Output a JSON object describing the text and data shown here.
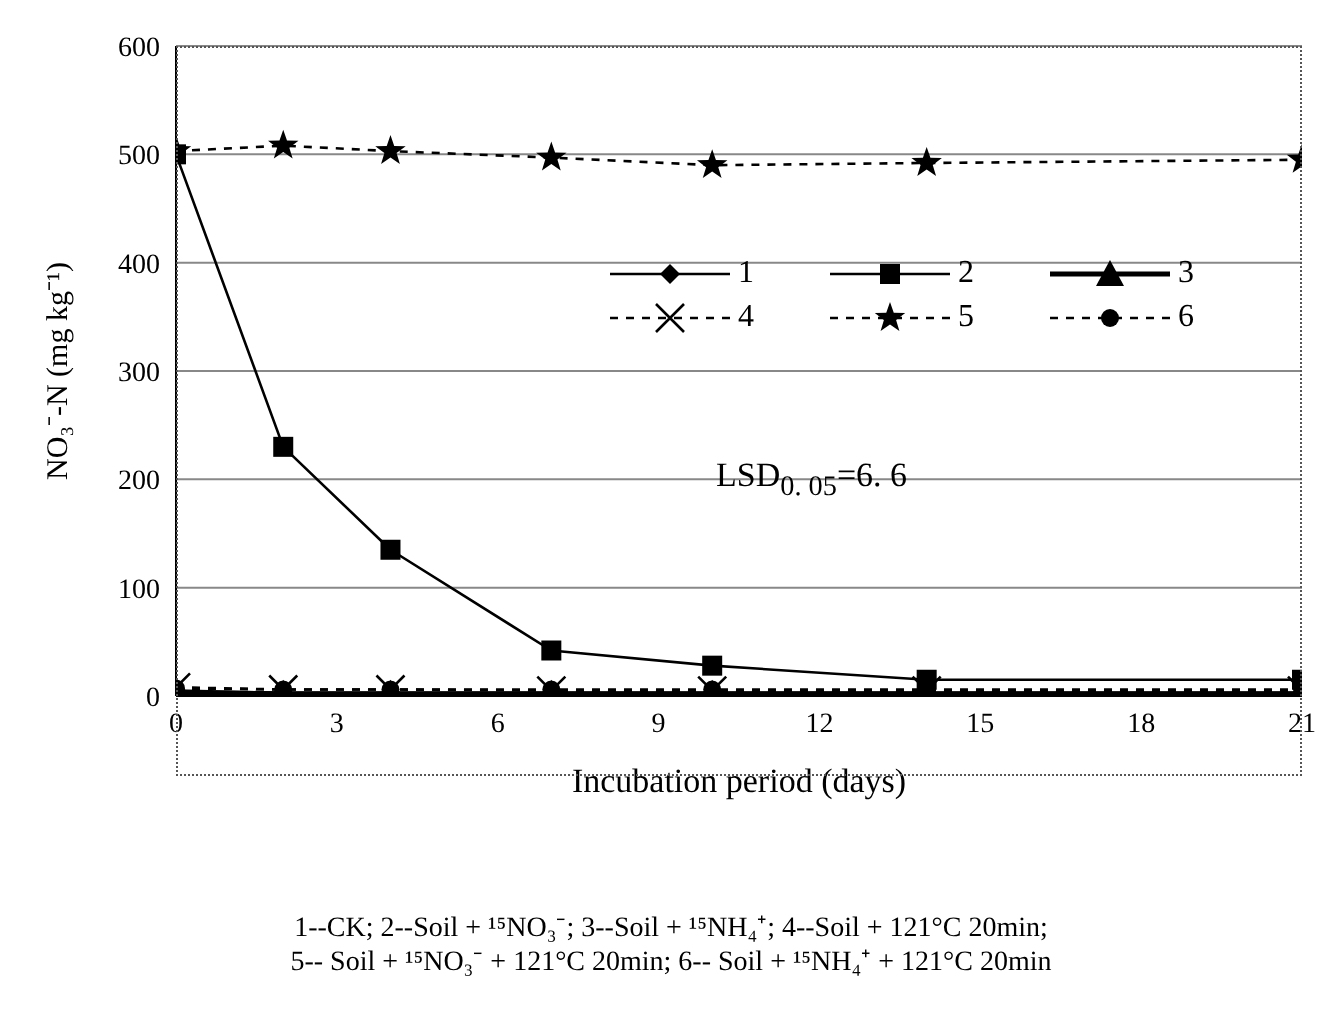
{
  "chart_data": {
    "type": "line",
    "xlabel": "Incubation period (days)",
    "ylabel": "NO₃⁻-N (mg kg⁻¹)",
    "x": [
      0,
      2,
      4,
      7,
      10,
      14,
      21
    ],
    "xlim": [
      0,
      21
    ],
    "xticks": [
      0,
      3,
      6,
      9,
      12,
      15,
      18,
      21
    ],
    "ylim": [
      0,
      600
    ],
    "yticks": [
      0,
      100,
      200,
      300,
      400,
      500,
      600
    ],
    "grid": "y",
    "legend": "top right",
    "series": [
      {
        "name": "1",
        "color": "#000000",
        "marker": "diamond",
        "line_style": "solid",
        "values": [
          5,
          3,
          3,
          3,
          3,
          3,
          3
        ]
      },
      {
        "name": "2",
        "color": "#000000",
        "marker": "square",
        "line_style": "solid",
        "values": [
          500,
          230,
          135,
          42,
          28,
          15,
          15
        ]
      },
      {
        "name": "3",
        "color": "#000000",
        "marker": "triangle",
        "line_style": "solid",
        "values": [
          3,
          2,
          2,
          2,
          2,
          2,
          2
        ]
      },
      {
        "name": "4",
        "color": "#000000",
        "marker": "cross",
        "line_style": "dashed",
        "values": [
          8,
          6,
          6,
          5,
          5,
          5,
          5
        ]
      },
      {
        "name": "5",
        "color": "#000000",
        "marker": "star",
        "line_style": "dashed",
        "values": [
          503,
          508,
          503,
          497,
          490,
          492,
          495
        ]
      },
      {
        "name": "6",
        "color": "#000000",
        "marker": "circle",
        "line_style": "dashed",
        "values": [
          7,
          6,
          6,
          6,
          6,
          6,
          6
        ]
      }
    ],
    "annotations": [
      "LSD$_{0. 05}$=6. 6",
      "1--CK;  2--Soil + ¹⁵NO₃⁻;  3--Soil + ¹⁵NH₄⁺;  4--Soil + 121°C 20min;",
      "5-- Soil + ¹⁵NO₃⁻ + 121°C 20min;  6-- Soil + ¹⁵NH₄⁺ + 121°C 20min"
    ]
  }
}
